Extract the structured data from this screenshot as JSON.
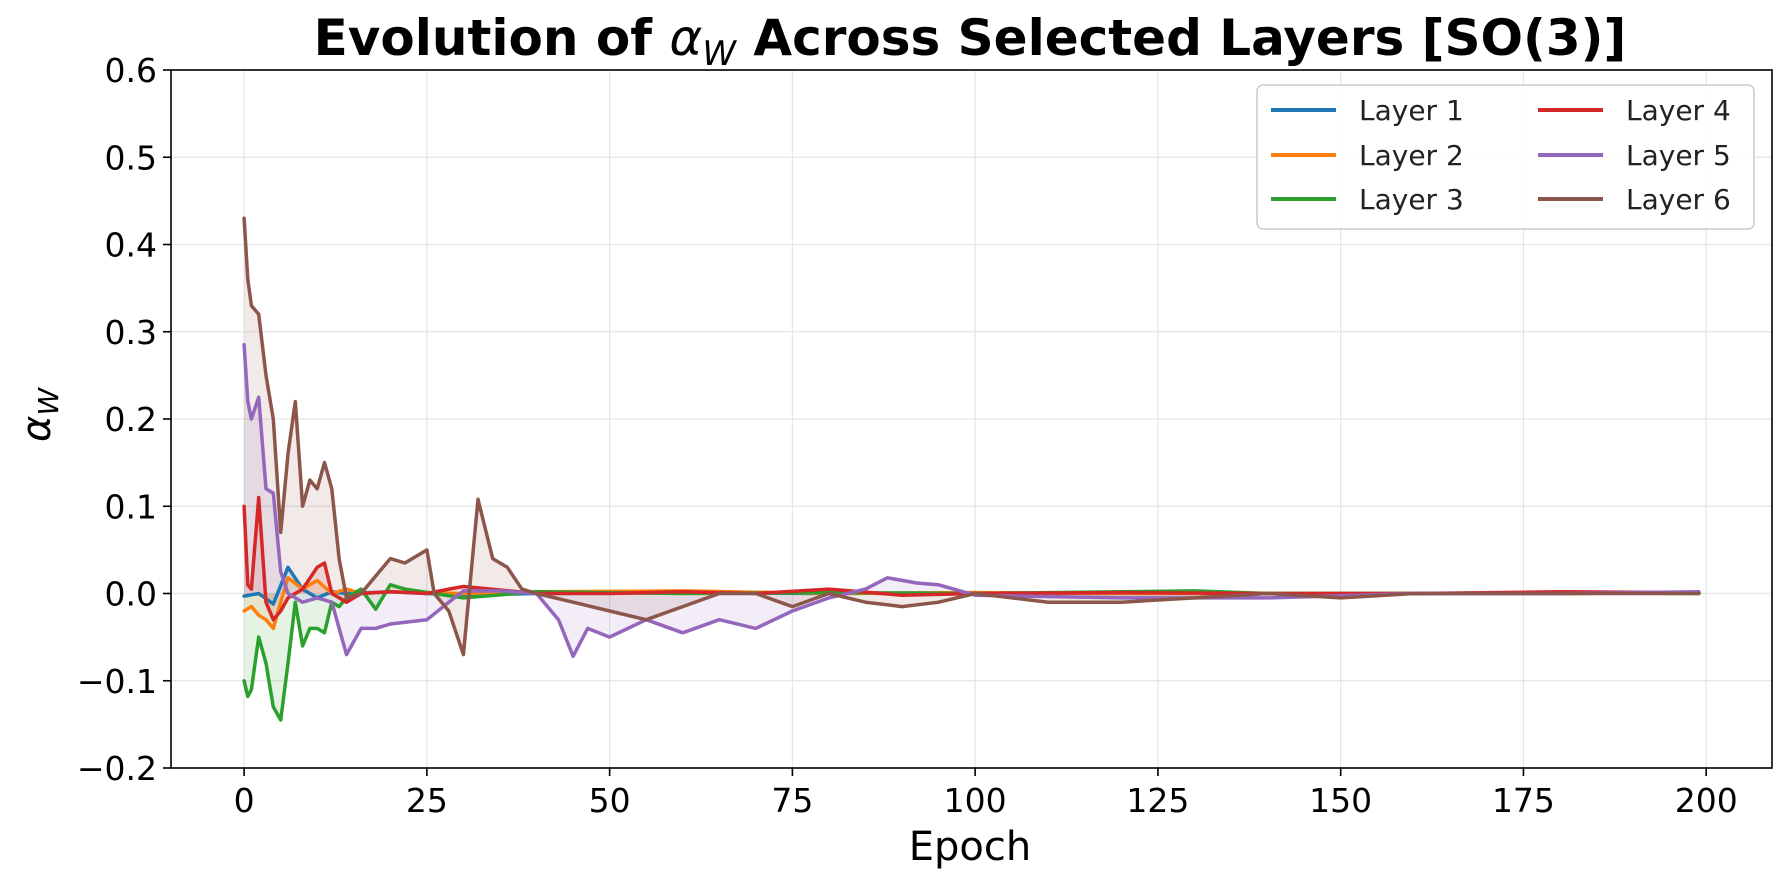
{
  "chart_data": {
    "type": "line",
    "title_prefix": "Evolution of ",
    "title_symbol": "α",
    "title_subscript": "W",
    "title_suffix": " Across Selected Layers [SO(3)]",
    "xlabel": "Epoch",
    "ylabel_symbol": "α",
    "ylabel_subscript": "W",
    "xlim": [
      -10,
      209
    ],
    "ylim": [
      -0.2,
      0.6
    ],
    "xticks": [
      0,
      25,
      50,
      75,
      100,
      125,
      150,
      175,
      200
    ],
    "xtick_labels": [
      "0",
      "25",
      "50",
      "75",
      "100",
      "125",
      "150",
      "175",
      "200"
    ],
    "yticks": [
      -0.2,
      -0.1,
      0.0,
      0.1,
      0.2,
      0.3,
      0.4,
      0.5,
      0.6
    ],
    "ytick_labels": [
      "−0.2",
      "−0.1",
      "0.0",
      "0.1",
      "0.2",
      "0.3",
      "0.4",
      "0.5",
      "0.6"
    ],
    "grid": true,
    "legend_position": "top-right",
    "legend_columns": 2,
    "series": [
      {
        "name": "Layer 1",
        "color": "#1f77b4",
        "x": [
          0,
          2,
          4,
          6,
          8,
          10,
          12,
          14,
          20,
          30,
          40,
          60,
          80,
          100,
          120,
          140,
          160,
          180,
          199
        ],
        "y": [
          -0.003,
          0.0,
          -0.012,
          0.03,
          0.005,
          -0.005,
          0.002,
          0.0,
          0.002,
          -0.002,
          0.0,
          0.001,
          0.0,
          0.001,
          0.0,
          0.0,
          0.0,
          0.0,
          0.001
        ]
      },
      {
        "name": "Layer 2",
        "color": "#ff7f0e",
        "x": [
          0,
          1,
          2,
          3,
          4,
          5,
          6,
          8,
          10,
          12,
          14,
          16,
          20,
          30,
          40,
          60,
          80,
          100,
          120,
          140,
          160,
          180,
          199
        ],
        "y": [
          -0.02,
          -0.015,
          -0.025,
          -0.03,
          -0.04,
          -0.01,
          0.018,
          0.005,
          0.015,
          0.0,
          0.005,
          0.0,
          0.002,
          0.0,
          0.002,
          0.003,
          0.0,
          0.001,
          0.0,
          0.0,
          0.0,
          0.0,
          0.001
        ]
      },
      {
        "name": "Layer 3",
        "color": "#2ca02c",
        "x": [
          0,
          0.5,
          1,
          2,
          3,
          4,
          5,
          6,
          7,
          8,
          9,
          10,
          11,
          12,
          13,
          14,
          16,
          18,
          20,
          22,
          26,
          30,
          40,
          60,
          80,
          100,
          120,
          130,
          140,
          160,
          180,
          199
        ],
        "y": [
          -0.1,
          -0.118,
          -0.11,
          -0.05,
          -0.08,
          -0.13,
          -0.145,
          -0.08,
          -0.01,
          -0.06,
          -0.04,
          -0.04,
          -0.045,
          -0.01,
          -0.015,
          -0.005,
          0.005,
          -0.018,
          0.01,
          0.005,
          0.0,
          -0.005,
          0.002,
          0.0,
          0.001,
          0.0,
          0.002,
          0.003,
          0.0,
          0.0,
          0.001,
          0.0
        ]
      },
      {
        "name": "Layer 4",
        "color": "#d62728",
        "x": [
          0,
          0.5,
          1,
          2,
          3,
          4,
          5,
          6,
          8,
          10,
          11,
          12,
          14,
          16,
          20,
          25,
          28,
          30,
          40,
          50,
          60,
          70,
          80,
          90,
          100,
          120,
          140,
          160,
          180,
          199
        ],
        "y": [
          0.1,
          0.01,
          0.005,
          0.11,
          -0.01,
          -0.03,
          -0.02,
          -0.005,
          0.005,
          0.03,
          0.035,
          0.0,
          -0.01,
          0.0,
          0.002,
          0.0,
          0.005,
          0.008,
          0.0,
          0.0,
          0.002,
          0.0,
          0.005,
          -0.002,
          0.0,
          0.001,
          0.0,
          0.0,
          0.002,
          0.001
        ]
      },
      {
        "name": "Layer 5",
        "color": "#9467bd",
        "x": [
          0,
          0.5,
          1,
          2,
          3,
          4,
          5,
          6,
          8,
          10,
          12,
          14,
          16,
          18,
          20,
          25,
          28,
          30,
          35,
          40,
          43,
          45,
          47,
          50,
          55,
          60,
          65,
          70,
          75,
          80,
          85,
          88,
          92,
          95,
          100,
          120,
          140,
          160,
          180,
          199
        ],
        "y": [
          0.285,
          0.22,
          0.2,
          0.225,
          0.12,
          0.115,
          0.025,
          0.0,
          -0.01,
          -0.005,
          -0.01,
          -0.07,
          -0.04,
          -0.04,
          -0.035,
          -0.03,
          -0.01,
          0.003,
          0.003,
          0.0,
          -0.03,
          -0.072,
          -0.04,
          -0.05,
          -0.03,
          -0.045,
          -0.03,
          -0.04,
          -0.02,
          -0.005,
          0.005,
          0.018,
          0.012,
          0.01,
          -0.002,
          -0.005,
          -0.005,
          0.0,
          0.0,
          0.002
        ]
      },
      {
        "name": "Layer 6",
        "color": "#8c564b",
        "x": [
          0,
          0.5,
          1,
          2,
          3,
          4,
          5,
          6,
          7,
          8,
          9,
          10,
          11,
          12,
          13,
          14,
          16,
          18,
          20,
          22,
          24,
          25,
          26,
          28,
          30,
          32,
          34,
          36,
          38,
          40,
          45,
          50,
          55,
          60,
          65,
          70,
          75,
          80,
          85,
          90,
          95,
          100,
          110,
          120,
          130,
          140,
          150,
          160,
          180,
          199
        ],
        "y": [
          0.43,
          0.36,
          0.33,
          0.32,
          0.25,
          0.2,
          0.07,
          0.16,
          0.22,
          0.1,
          0.13,
          0.12,
          0.15,
          0.12,
          0.04,
          -0.005,
          0.0,
          0.02,
          0.04,
          0.035,
          0.045,
          0.05,
          0.0,
          -0.02,
          -0.07,
          0.108,
          0.04,
          0.03,
          0.005,
          0.0,
          -0.01,
          -0.02,
          -0.03,
          -0.015,
          0.0,
          0.0,
          -0.015,
          0.0,
          -0.01,
          -0.015,
          -0.01,
          0.0,
          -0.01,
          -0.01,
          -0.005,
          0.0,
          -0.005,
          0.0,
          0.0,
          0.0
        ]
      }
    ]
  }
}
